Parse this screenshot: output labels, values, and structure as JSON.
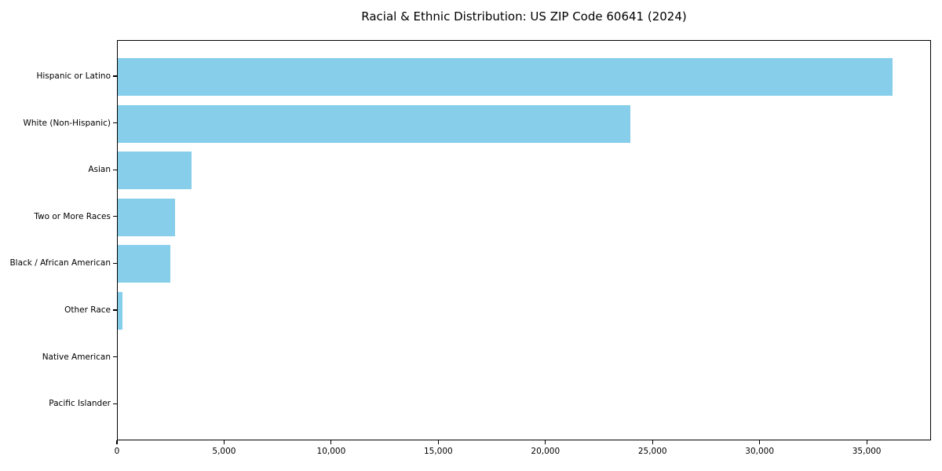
{
  "chart_data": {
    "type": "bar",
    "orientation": "horizontal",
    "title": "Racial & Ethnic Distribution: US ZIP Code 60641 (2024)",
    "categories": [
      "Hispanic or Latino",
      "White (Non-Hispanic)",
      "Asian",
      "Two or More Races",
      "Black / African American",
      "Other Race",
      "Native American",
      "Pacific Islander"
    ],
    "values": [
      36170,
      23940,
      3440,
      2670,
      2460,
      220,
      0,
      0
    ],
    "xlabel": "",
    "ylabel": "",
    "xlim": [
      0,
      38000
    ],
    "xticks": [
      0,
      5000,
      10000,
      15000,
      20000,
      25000,
      30000,
      35000
    ],
    "xtick_labels": [
      "0",
      "5,000",
      "10,000",
      "15,000",
      "20,000",
      "25,000",
      "30,000",
      "35,000"
    ],
    "bar_color": "#87CEEB",
    "spine_color": "#000000",
    "text_color": "#000000",
    "background_color": "#FFFFFF",
    "grid": false,
    "legend": null
  }
}
